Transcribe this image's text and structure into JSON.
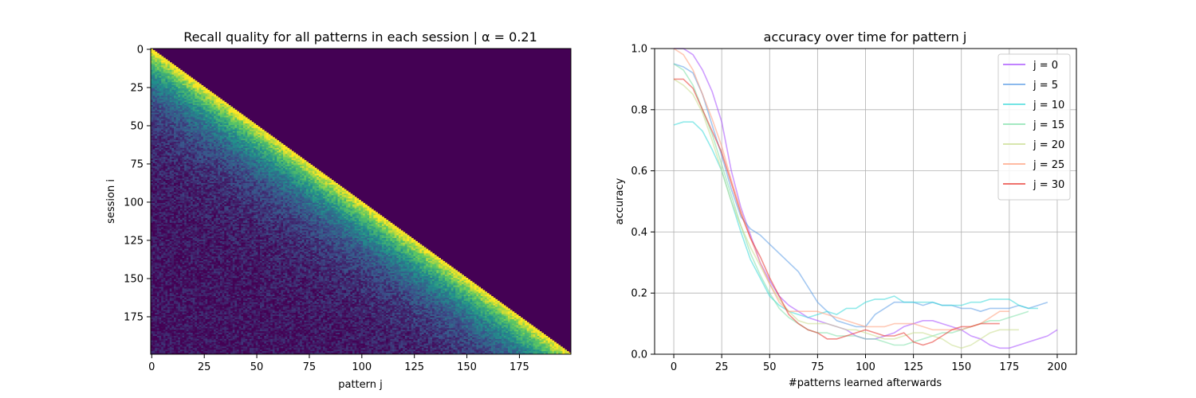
{
  "chart_data": [
    {
      "type": "heatmap",
      "title": "Recall quality for all patterns in each session | α = 0.21",
      "xlabel": "pattern j",
      "ylabel": "session i",
      "rows": 200,
      "cols": 200,
      "xticks": [
        0,
        25,
        50,
        75,
        100,
        125,
        150,
        175
      ],
      "yticks": [
        0,
        25,
        50,
        75,
        100,
        125,
        150,
        175
      ],
      "colormap": [
        "#440154",
        "#3b528b",
        "#21918c",
        "#5ec962",
        "#fde725"
      ],
      "cell_rule": "value = 0 when pattern j > session i; otherwise recall is ~0.95 on the diagonal (j = i) and decays to a noisy floor of ~0.05–0.35 for older patterns"
    },
    {
      "type": "line",
      "title": "accuracy over time for pattern j",
      "xlabel": "#patterns learned afterwards",
      "ylabel": "accuracy",
      "xlim": [
        -10,
        210
      ],
      "ylim": [
        0,
        1
      ],
      "xticks": [
        0,
        25,
        50,
        75,
        100,
        125,
        150,
        175,
        200
      ],
      "yticks": [
        0.0,
        0.2,
        0.4,
        0.6,
        0.8,
        1.0
      ],
      "grid": true,
      "legend": "top-right",
      "series": [
        {
          "name": "j = 0",
          "color": "#a64dff",
          "x": [
            0,
            5,
            10,
            15,
            20,
            25,
            30,
            35,
            40,
            45,
            50,
            55,
            60,
            65,
            70,
            75,
            80,
            85,
            90,
            95,
            100,
            105,
            110,
            115,
            120,
            125,
            130,
            135,
            140,
            145,
            150,
            155,
            160,
            165,
            170,
            175,
            180,
            185,
            190,
            195,
            200
          ],
          "y": [
            1.0,
            1.0,
            0.98,
            0.93,
            0.86,
            0.76,
            0.6,
            0.48,
            0.39,
            0.3,
            0.24,
            0.19,
            0.16,
            0.14,
            0.12,
            0.11,
            0.1,
            0.09,
            0.08,
            0.06,
            0.05,
            0.05,
            0.06,
            0.07,
            0.09,
            0.1,
            0.11,
            0.11,
            0.1,
            0.09,
            0.08,
            0.06,
            0.05,
            0.03,
            0.02,
            0.02,
            0.03,
            0.04,
            0.05,
            0.06,
            0.08
          ]
        },
        {
          "name": "j = 5",
          "color": "#5a9be6",
          "x": [
            0,
            5,
            10,
            15,
            20,
            25,
            30,
            35,
            40,
            45,
            50,
            55,
            60,
            65,
            70,
            75,
            80,
            85,
            90,
            95,
            100,
            105,
            110,
            115,
            120,
            125,
            130,
            135,
            140,
            145,
            150,
            155,
            160,
            165,
            170,
            175,
            180,
            185,
            190,
            195
          ],
          "y": [
            0.95,
            0.94,
            0.92,
            0.85,
            0.75,
            0.65,
            0.54,
            0.45,
            0.41,
            0.39,
            0.36,
            0.33,
            0.3,
            0.27,
            0.22,
            0.17,
            0.14,
            0.11,
            0.1,
            0.09,
            0.09,
            0.13,
            0.15,
            0.17,
            0.17,
            0.17,
            0.16,
            0.17,
            0.16,
            0.16,
            0.15,
            0.15,
            0.14,
            0.15,
            0.15,
            0.15,
            0.16,
            0.15,
            0.16,
            0.17
          ]
        },
        {
          "name": "j = 10",
          "color": "#38d9d9",
          "x": [
            0,
            5,
            10,
            15,
            20,
            25,
            30,
            35,
            40,
            45,
            50,
            55,
            60,
            65,
            70,
            75,
            80,
            85,
            90,
            95,
            100,
            105,
            110,
            115,
            120,
            125,
            130,
            135,
            140,
            145,
            150,
            155,
            160,
            165,
            170,
            175,
            180,
            185,
            190
          ],
          "y": [
            0.75,
            0.76,
            0.76,
            0.73,
            0.67,
            0.6,
            0.5,
            0.4,
            0.31,
            0.25,
            0.19,
            0.16,
            0.14,
            0.13,
            0.12,
            0.13,
            0.14,
            0.13,
            0.15,
            0.15,
            0.17,
            0.18,
            0.18,
            0.19,
            0.17,
            0.17,
            0.17,
            0.17,
            0.16,
            0.16,
            0.16,
            0.17,
            0.17,
            0.18,
            0.18,
            0.18,
            0.16,
            0.15,
            0.15
          ]
        },
        {
          "name": "j = 15",
          "color": "#7de0a8",
          "x": [
            0,
            5,
            10,
            15,
            20,
            25,
            30,
            35,
            40,
            45,
            50,
            55,
            60,
            65,
            70,
            75,
            80,
            85,
            90,
            95,
            100,
            105,
            110,
            115,
            120,
            125,
            130,
            135,
            140,
            145,
            150,
            155,
            160,
            165,
            170,
            175,
            180,
            185
          ],
          "y": [
            0.95,
            0.93,
            0.88,
            0.8,
            0.72,
            0.62,
            0.52,
            0.42,
            0.33,
            0.26,
            0.2,
            0.15,
            0.12,
            0.1,
            0.08,
            0.07,
            0.07,
            0.06,
            0.06,
            0.06,
            0.05,
            0.05,
            0.04,
            0.03,
            0.03,
            0.04,
            0.05,
            0.06,
            0.07,
            0.07,
            0.08,
            0.09,
            0.1,
            0.11,
            0.11,
            0.12,
            0.13,
            0.14
          ]
        },
        {
          "name": "j = 20",
          "color": "#c8dc8c",
          "x": [
            0,
            5,
            10,
            15,
            20,
            25,
            30,
            35,
            40,
            45,
            50,
            55,
            60,
            65,
            70,
            75,
            80,
            85,
            90,
            95,
            100,
            105,
            110,
            115,
            120,
            125,
            130,
            135,
            140,
            145,
            150,
            155,
            160,
            165,
            170,
            175,
            180
          ],
          "y": [
            0.9,
            0.88,
            0.85,
            0.79,
            0.7,
            0.6,
            0.5,
            0.42,
            0.35,
            0.29,
            0.23,
            0.18,
            0.14,
            0.11,
            0.1,
            0.1,
            0.1,
            0.09,
            0.08,
            0.08,
            0.07,
            0.06,
            0.05,
            0.05,
            0.06,
            0.07,
            0.07,
            0.06,
            0.05,
            0.03,
            0.02,
            0.03,
            0.05,
            0.07,
            0.08,
            0.08,
            0.08
          ]
        },
        {
          "name": "j = 25",
          "color": "#ff9c7a",
          "x": [
            0,
            5,
            10,
            15,
            20,
            25,
            30,
            35,
            40,
            45,
            50,
            55,
            60,
            65,
            70,
            75,
            80,
            85,
            90,
            95,
            100,
            105,
            110,
            115,
            120,
            125,
            130,
            135,
            140,
            145,
            150,
            155,
            160,
            165,
            170,
            175
          ],
          "y": [
            1.0,
            0.98,
            0.93,
            0.85,
            0.77,
            0.68,
            0.57,
            0.47,
            0.38,
            0.3,
            0.23,
            0.17,
            0.14,
            0.14,
            0.14,
            0.14,
            0.13,
            0.12,
            0.11,
            0.1,
            0.09,
            0.09,
            0.09,
            0.1,
            0.1,
            0.1,
            0.09,
            0.08,
            0.08,
            0.08,
            0.08,
            0.09,
            0.1,
            0.12,
            0.14,
            0.14
          ]
        },
        {
          "name": "j = 30",
          "color": "#e8342e",
          "x": [
            0,
            5,
            10,
            15,
            20,
            25,
            30,
            35,
            40,
            45,
            50,
            55,
            60,
            65,
            70,
            75,
            80,
            85,
            90,
            95,
            100,
            105,
            110,
            115,
            120,
            125,
            130,
            135,
            140,
            145,
            150,
            155,
            160,
            165,
            170
          ],
          "y": [
            0.9,
            0.9,
            0.87,
            0.8,
            0.73,
            0.66,
            0.56,
            0.46,
            0.38,
            0.32,
            0.25,
            0.19,
            0.13,
            0.1,
            0.08,
            0.07,
            0.05,
            0.05,
            0.06,
            0.07,
            0.08,
            0.07,
            0.06,
            0.06,
            0.07,
            0.04,
            0.03,
            0.04,
            0.06,
            0.08,
            0.09,
            0.09,
            0.1,
            0.1,
            0.1
          ]
        }
      ]
    }
  ]
}
